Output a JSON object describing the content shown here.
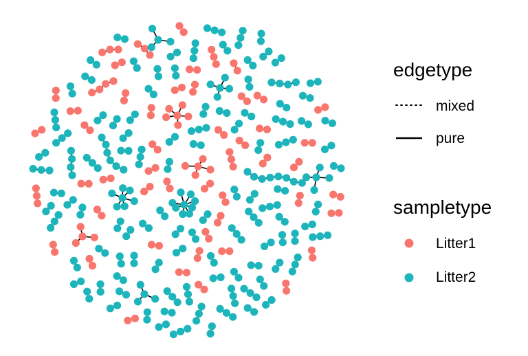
{
  "colors": {
    "Litter1": "#F8766D",
    "Litter2": "#1DB5BB",
    "edge": "#000000"
  },
  "legend": {
    "edgetype": {
      "title": "edgetype",
      "items": [
        {
          "label": "mixed",
          "style": "dotted"
        },
        {
          "label": "pure",
          "style": "solid"
        }
      ]
    },
    "sampletype": {
      "title": "sampletype",
      "items": [
        {
          "label": "Litter1",
          "color": "#F8766D"
        },
        {
          "label": "Litter2",
          "color": "#1DB5BB"
        }
      ]
    }
  },
  "chart_data": {
    "type": "network",
    "layout": "circular-packing",
    "groups": [
      {
        "type": "chain",
        "color": "Litter1",
        "nodes": 3
      },
      {
        "type": "chain",
        "color": "Litter1",
        "nodes": 4
      },
      {
        "type": "star",
        "color": "Litter1",
        "nodes": 6
      },
      {
        "type": "star",
        "color": "Litter1",
        "nodes": 5
      },
      {
        "type": "chain",
        "color": "Litter1",
        "nodes": 2
      },
      {
        "type": "chain",
        "color": "Litter1",
        "nodes": 3
      },
      {
        "type": "star",
        "color": "Litter1",
        "nodes": 4
      },
      {
        "type": "star",
        "color": "Litter2",
        "nodes": 4
      },
      {
        "type": "star",
        "color": "Litter2",
        "nodes": 5
      },
      {
        "type": "star",
        "color": "Litter2",
        "nodes": 7
      },
      {
        "type": "star",
        "color": "Litter2",
        "nodes": 9
      },
      {
        "type": "star",
        "color": "Litter2",
        "nodes": 4
      },
      {
        "type": "star",
        "color": "Litter2",
        "nodes": 5
      },
      {
        "type": "chain",
        "color": "Litter2",
        "nodes": 3
      },
      {
        "type": "chain",
        "color": "Litter2",
        "nodes": 6
      },
      {
        "type": "chain",
        "color": "Litter2",
        "nodes": 4
      },
      {
        "type": "chain",
        "color": "Litter2",
        "nodes": 8
      },
      {
        "type": "chain",
        "color": "Litter2",
        "nodes": 4
      }
    ]
  }
}
